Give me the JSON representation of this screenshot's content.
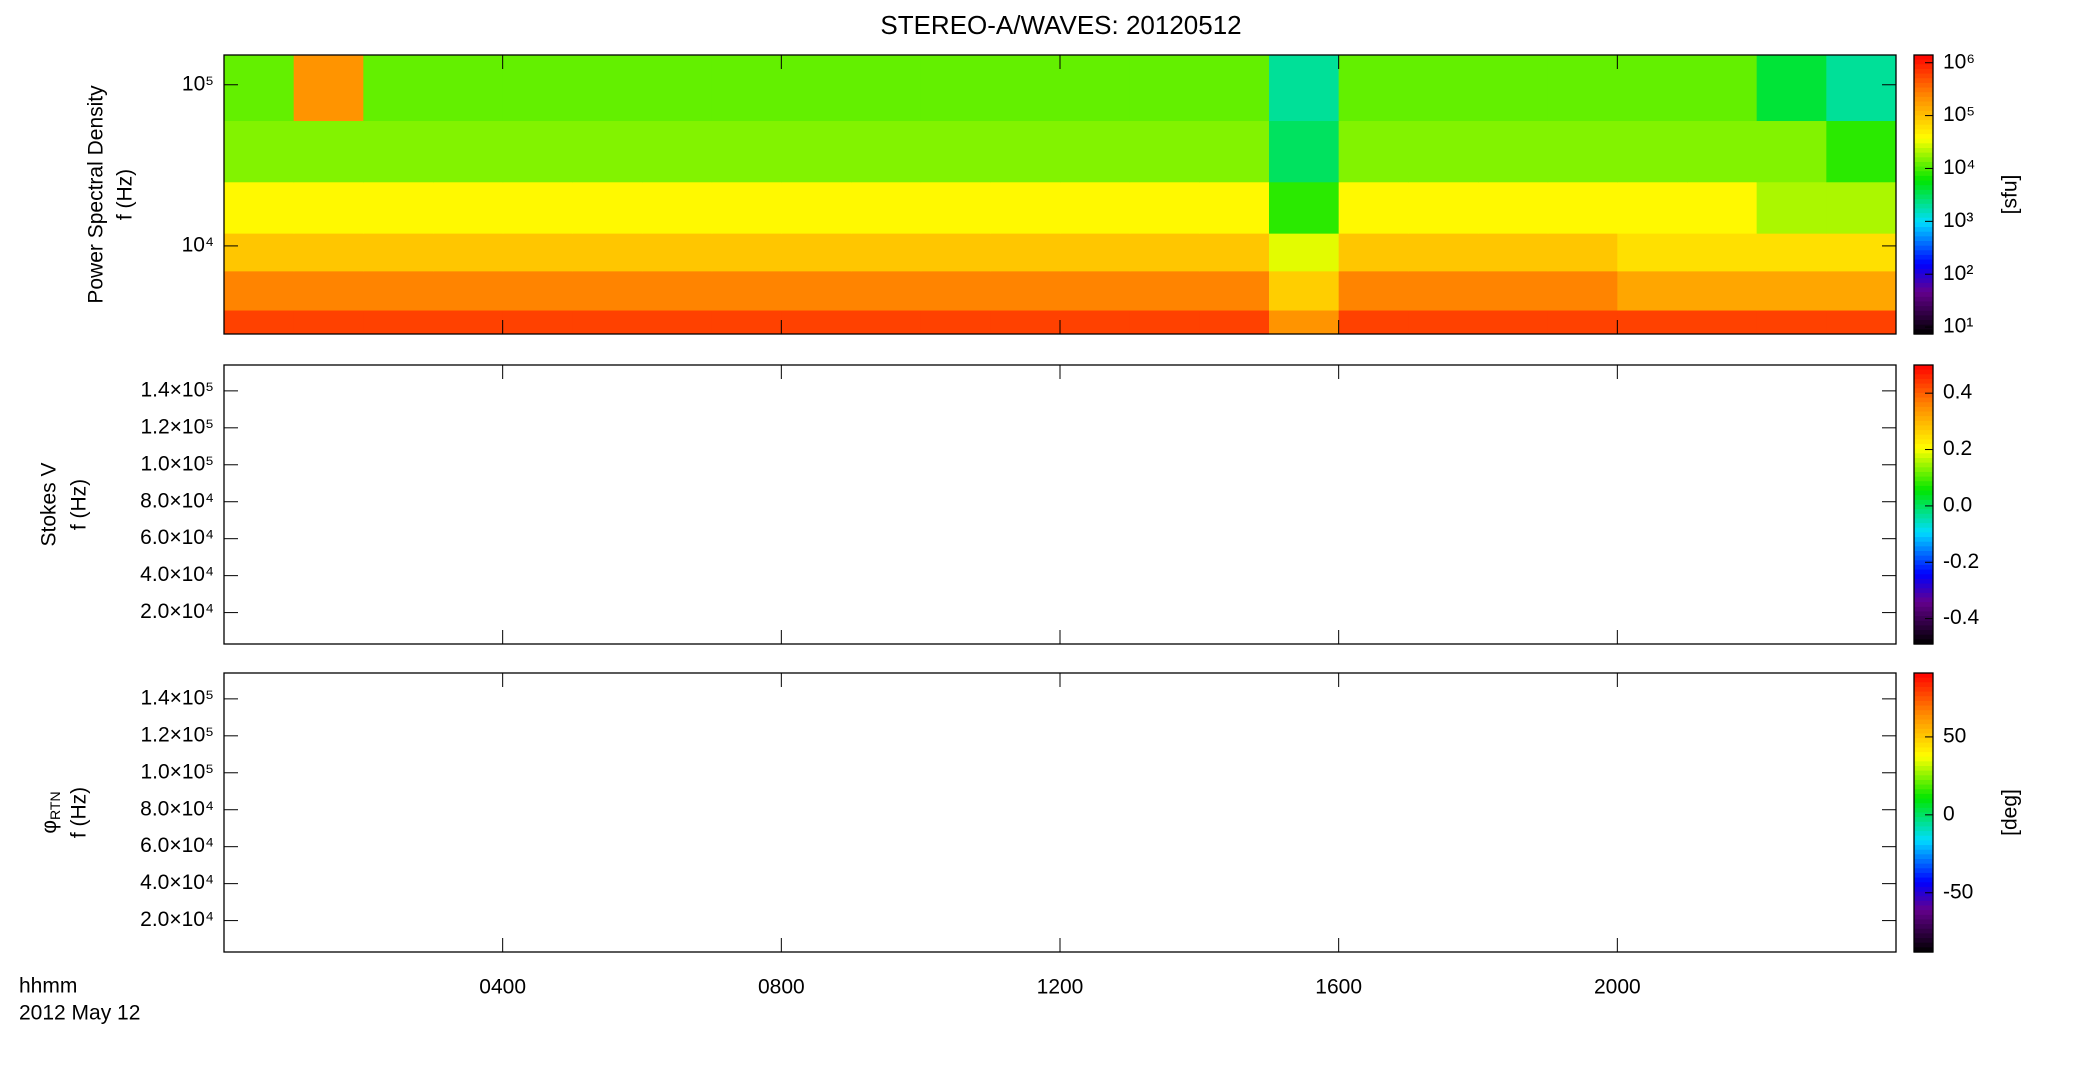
{
  "chart_data": {
    "type": "spectrogram",
    "title": "STEREO-A/WAVES: 20120512",
    "xlabel": "hhmm",
    "date": "2012 May 12",
    "xlim": [
      0,
      24
    ],
    "xticks": [
      {
        "value": 4,
        "label": "0400"
      },
      {
        "value": 8,
        "label": "0800"
      },
      {
        "value": 12,
        "label": "1200"
      },
      {
        "value": 16,
        "label": "1600"
      },
      {
        "value": 20,
        "label": "2000"
      }
    ],
    "x": [
      0,
      1,
      2,
      3,
      4,
      5,
      6,
      7,
      8,
      9,
      10,
      11,
      12,
      13,
      14,
      15,
      16,
      17,
      18,
      19,
      20,
      21,
      22,
      23,
      24
    ],
    "panels": [
      {
        "ylabel": [
          "Power Spectral Density",
          "f (Hz)"
        ],
        "ylog": true,
        "ylim": [
          2840,
          153000
        ],
        "yticks": [
          {
            "value": 10000,
            "label": "10⁴"
          },
          {
            "value": 100000,
            "label": "10⁵"
          }
        ],
        "y": [
          2840,
          4000,
          7000,
          12000,
          25000,
          60000,
          153000
        ],
        "values": [
          [
            600000,
            600000,
            600000,
            600000,
            600000,
            600000,
            600000,
            600000,
            600000,
            600000,
            600000,
            600000,
            600000,
            600000,
            600000,
            200000,
            600000,
            600000,
            600000,
            600000,
            600000,
            600000,
            600000,
            600000
          ],
          [
            250000,
            250000,
            250000,
            250000,
            250000,
            250000,
            250000,
            250000,
            250000,
            250000,
            250000,
            250000,
            250000,
            250000,
            250000,
            80000,
            250000,
            250000,
            250000,
            250000,
            150000,
            150000,
            150000,
            150000
          ],
          [
            90000,
            90000,
            90000,
            90000,
            90000,
            90000,
            90000,
            90000,
            90000,
            90000,
            90000,
            90000,
            90000,
            90000,
            90000,
            30000,
            90000,
            90000,
            90000,
            90000,
            60000,
            60000,
            60000,
            60000
          ],
          [
            40000,
            40000,
            40000,
            40000,
            40000,
            40000,
            40000,
            40000,
            40000,
            40000,
            40000,
            40000,
            40000,
            40000,
            40000,
            8000,
            40000,
            40000,
            40000,
            40000,
            40000,
            40000,
            20000,
            20000
          ],
          [
            15000,
            15000,
            15000,
            15000,
            15000,
            15000,
            15000,
            15000,
            15000,
            15000,
            15000,
            15000,
            15000,
            15000,
            15000,
            3000,
            15000,
            15000,
            15000,
            15000,
            15000,
            15000,
            15000,
            8000
          ],
          [
            12000,
            200000,
            12000,
            12000,
            12000,
            12000,
            12000,
            12000,
            12000,
            12000,
            12000,
            12000,
            12000,
            12000,
            12000,
            2000,
            12000,
            12000,
            12000,
            12000,
            12000,
            12000,
            4000,
            2000
          ]
        ],
        "zlog": true,
        "zlim": [
          7.4,
          1400000
        ],
        "zticks": [
          {
            "value": 10,
            "label": "10¹"
          },
          {
            "value": 100,
            "label": "10²"
          },
          {
            "value": 1000,
            "label": "10³"
          },
          {
            "value": 10000,
            "label": "10⁴"
          },
          {
            "value": 100000,
            "label": "10⁵"
          },
          {
            "value": 1000000,
            "label": "10⁶"
          }
        ],
        "zlabel": "[sfu]"
      },
      {
        "ylabel": [
          "Stokes V",
          "f (Hz)"
        ],
        "ylog": false,
        "ylim": [
          3000,
          154000
        ],
        "yticks": [
          {
            "value": 20000,
            "label": "2.0×10⁴"
          },
          {
            "value": 40000,
            "label": "4.0×10⁴"
          },
          {
            "value": 60000,
            "label": "6.0×10⁴"
          },
          {
            "value": 80000,
            "label": "8.0×10⁴"
          },
          {
            "value": 100000,
            "label": "1.0×10⁵"
          },
          {
            "value": 120000,
            "label": "1.2×10⁵"
          },
          {
            "value": 140000,
            "label": "1.4×10⁵"
          }
        ],
        "zlog": false,
        "zlim": [
          -0.49,
          0.5
        ],
        "zticks": [
          -0.4,
          -0.2,
          {
            "value": 0,
            "label": "0.0"
          },
          0.2,
          0.4
        ]
      },
      {
        "ylabel_symbol": "φ",
        "ylabel_subscript": "RTN",
        "ylabel": [
          "f (Hz)"
        ],
        "ylog": false,
        "ylim": [
          3000,
          154000
        ],
        "yticks": [
          {
            "value": 20000,
            "label": "2.0×10⁴"
          },
          {
            "value": 40000,
            "label": "4.0×10⁴"
          },
          {
            "value": 60000,
            "label": "6.0×10⁴"
          },
          {
            "value": 80000,
            "label": "8.0×10⁴"
          },
          {
            "value": 100000,
            "label": "1.0×10⁵"
          },
          {
            "value": 120000,
            "label": "1.2×10⁵"
          },
          {
            "value": 140000,
            "label": "1.4×10⁵"
          }
        ],
        "zlog": false,
        "zlim": [
          -88,
          91
        ],
        "zticks": [
          -50,
          0,
          50
        ],
        "zlabel": "[deg]"
      }
    ]
  }
}
